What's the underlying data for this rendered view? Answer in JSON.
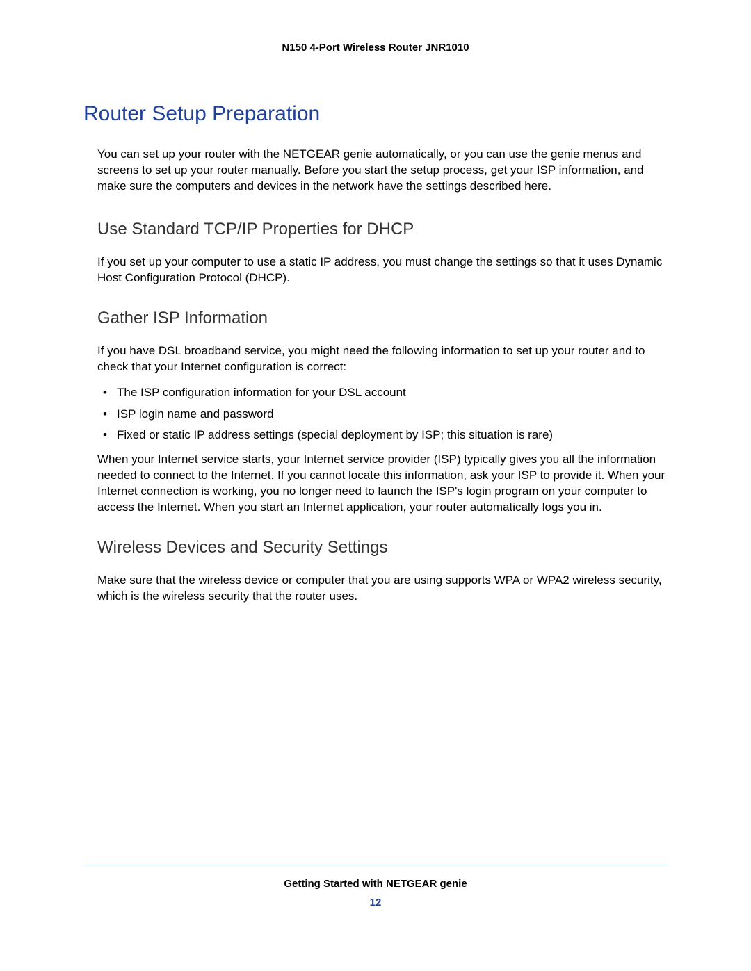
{
  "header": {
    "product": "N150 4-Port Wireless Router JNR1010"
  },
  "title": "Router Setup Preparation",
  "intro": "You can set up your router with the NETGEAR genie automatically, or you can use the genie menus and screens to set up your router manually. Before you start the setup process, get your ISP information, and make sure the computers and devices in the network have the settings described here.",
  "sections": {
    "tcpip": {
      "heading": "Use Standard TCP/IP Properties for DHCP",
      "body": "If you set up your computer to use a static IP address, you must change the settings so that it uses Dynamic Host Configuration Protocol (DHCP)."
    },
    "isp": {
      "heading": "Gather ISP Information",
      "intro": "If you have DSL broadband service, you might need the following information to set up your router and to check that your Internet configuration is correct:",
      "bullets": [
        "The ISP configuration information for your DSL account",
        "ISP login name and password",
        "Fixed or static IP address settings (special deployment by ISP; this situation is rare)"
      ],
      "after": "When your Internet service starts, your Internet service provider (ISP) typically gives you all the information needed to connect to the Internet. If you cannot locate this information, ask your ISP to provide it. When your Internet connection is working, you no longer need to launch the ISP's login program on your computer to access the Internet. When you start an Internet application, your router automatically logs you in."
    },
    "wireless": {
      "heading": "Wireless Devices and Security Settings",
      "body": "Make sure that the wireless device or computer that you are using supports WPA or WPA2 wireless security, which is the wireless security that the router uses."
    }
  },
  "footer": {
    "chapter": "Getting Started with NETGEAR genie",
    "page": "12"
  },
  "styling": {
    "title_color": "#20419a",
    "heading_color": "#333333",
    "body_color": "#000000",
    "background_color": "#ffffff",
    "footer_line_color": "#20419a",
    "page_number_color": "#20419a",
    "title_fontsize": 30,
    "heading_fontsize": 24,
    "body_fontsize": 17,
    "header_fontsize": 15
  }
}
